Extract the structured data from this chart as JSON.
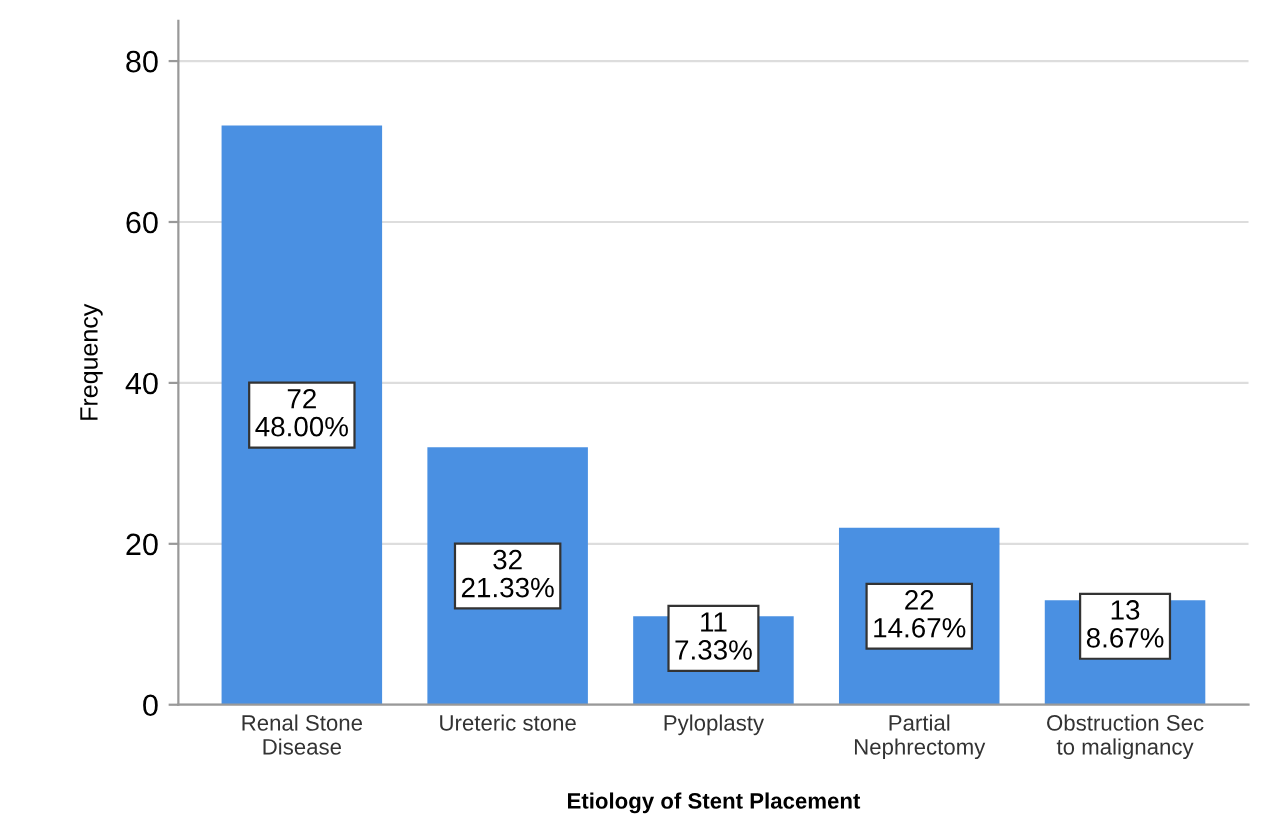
{
  "chart_data": {
    "type": "bar",
    "xlabel": "Etiology of Stent Placement",
    "ylabel": "Frequency",
    "categories": [
      "Renal Stone\nDisease",
      "Ureteric stone",
      "Pyloplasty",
      "Partial\nNephrectomy",
      "Obstruction Sec\nto malignancy"
    ],
    "values": [
      72,
      32,
      11,
      22,
      13
    ],
    "value_labels": [
      "72\n48.00%",
      "32\n21.33%",
      "11\n7.33%",
      "22\n14.67%",
      "13\n8.67%"
    ],
    "color": "#4a90e2",
    "ylim": [
      0,
      85
    ],
    "yticks": [
      0,
      20,
      40,
      60,
      80
    ],
    "grid": "y"
  }
}
